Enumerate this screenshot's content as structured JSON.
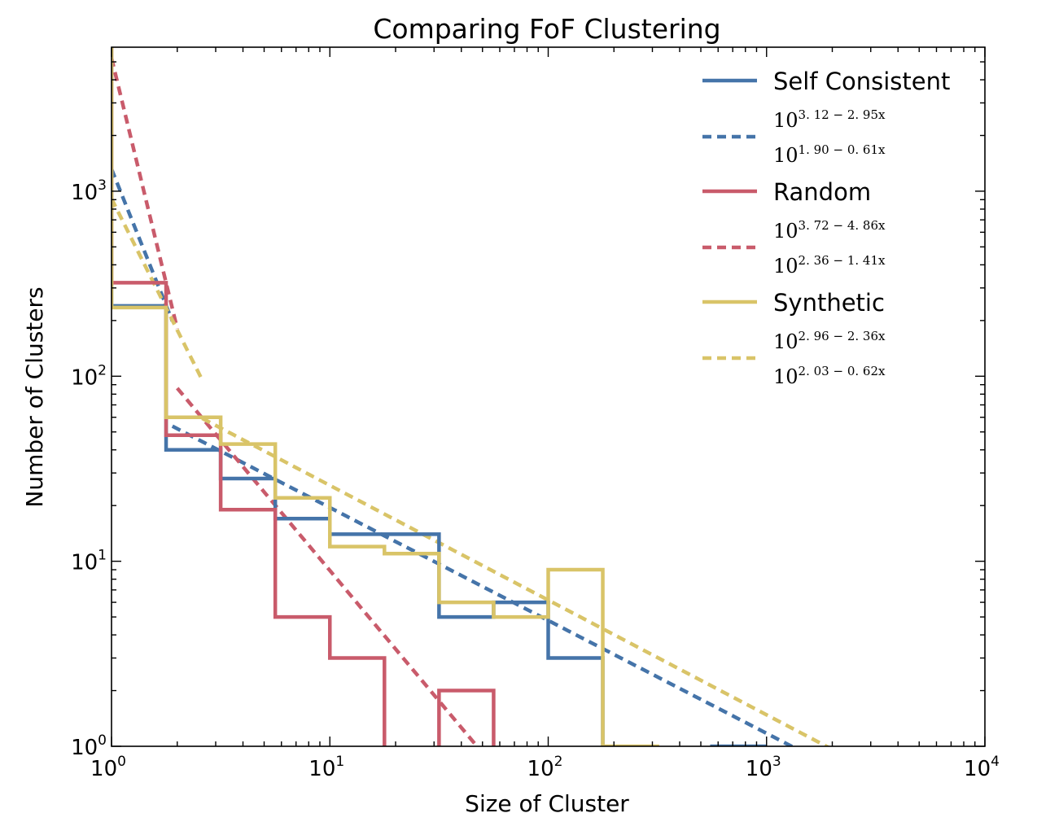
{
  "chart_data": {
    "type": "line",
    "title": "Comparing FoF Clustering",
    "xlabel": "Size of Cluster",
    "ylabel": "Number of Clusters",
    "xscale": "log",
    "yscale": "log",
    "xlim": [
      1,
      10000
    ],
    "ylim": [
      1,
      6000
    ],
    "x_ticks": [
      {
        "base": "10",
        "exp": "0",
        "value": 1
      },
      {
        "base": "10",
        "exp": "1",
        "value": 10
      },
      {
        "base": "10",
        "exp": "2",
        "value": 100
      },
      {
        "base": "10",
        "exp": "3",
        "value": 1000
      },
      {
        "base": "10",
        "exp": "4",
        "value": 10000
      }
    ],
    "y_ticks": [
      {
        "base": "10",
        "exp": "0",
        "value": 1
      },
      {
        "base": "10",
        "exp": "1",
        "value": 10
      },
      {
        "base": "10",
        "exp": "2",
        "value": 100
      },
      {
        "base": "10",
        "exp": "3",
        "value": 1000
      }
    ],
    "grid": false,
    "legend_position": "top-right",
    "bin_edges": [
      1,
      1.778,
      3.162,
      5.623,
      10,
      17.78,
      31.62,
      56.23,
      100,
      177.8,
      316.2,
      562.3,
      1000
    ],
    "series": [
      {
        "name": "Self Consistent",
        "kind": "histogram",
        "color": "#4574a9",
        "counts": [
          240,
          40,
          28,
          17,
          14,
          14,
          5,
          6,
          3,
          0,
          0,
          1
        ]
      },
      {
        "name": "Random",
        "kind": "histogram",
        "color": "#c95b6b",
        "counts": [
          320,
          48,
          19,
          5,
          3,
          0,
          2,
          0,
          0,
          0,
          0,
          0
        ]
      },
      {
        "name": "Synthetic",
        "kind": "histogram",
        "color": "#d9c468",
        "counts": [
          235,
          60,
          43,
          22,
          12,
          11,
          6,
          5,
          9,
          1,
          0,
          0
        ]
      }
    ],
    "fits": [
      {
        "color": "#4574a9",
        "x_range": [
          1,
          1.9
        ],
        "a": 3.12,
        "b": 2.95
      },
      {
        "color": "#4574a9",
        "x_range": [
          1.9,
          1500
        ],
        "a": 1.9,
        "b": 0.61
      },
      {
        "color": "#c95b6b",
        "x_range": [
          1,
          2.0
        ],
        "a": 3.72,
        "b": 4.86
      },
      {
        "color": "#c95b6b",
        "x_range": [
          2.0,
          60
        ],
        "a": 2.36,
        "b": 1.41
      },
      {
        "color": "#d9c468",
        "x_range": [
          1,
          2.6
        ],
        "a": 2.96,
        "b": 2.36
      },
      {
        "color": "#d9c468",
        "x_range": [
          2.6,
          2000
        ],
        "a": 2.03,
        "b": 0.62
      }
    ],
    "legend": [
      {
        "type": "label",
        "style": "solid",
        "color": "#4574a9",
        "label": "Self Consistent"
      },
      {
        "type": "formula",
        "style": "dashed",
        "color": "#4574a9",
        "line1_base": "10",
        "line1_exp": "3. 12 − 2. 95x",
        "line2_base": "10",
        "line2_exp": "1. 90 − 0. 61x"
      },
      {
        "type": "label",
        "style": "solid",
        "color": "#c95b6b",
        "label": "Random"
      },
      {
        "type": "formula",
        "style": "dashed",
        "color": "#c95b6b",
        "line1_base": "10",
        "line1_exp": "3. 72 − 4. 86x",
        "line2_base": "10",
        "line2_exp": "2. 36 − 1. 41x"
      },
      {
        "type": "label",
        "style": "solid",
        "color": "#d9c468",
        "label": "Synthetic"
      },
      {
        "type": "formula",
        "style": "dashed",
        "color": "#d9c468",
        "line1_base": "10",
        "line1_exp": "2. 96 − 2. 36x",
        "line2_base": "10",
        "line2_exp": "2. 03 − 0. 62x"
      }
    ]
  }
}
